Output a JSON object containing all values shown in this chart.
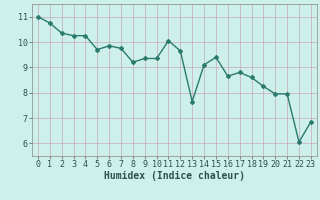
{
  "x": [
    0,
    1,
    2,
    3,
    4,
    5,
    6,
    7,
    8,
    9,
    10,
    11,
    12,
    13,
    14,
    15,
    16,
    17,
    18,
    19,
    20,
    21,
    22,
    23
  ],
  "y": [
    11.0,
    10.75,
    10.35,
    10.25,
    10.25,
    9.7,
    9.85,
    9.75,
    9.2,
    9.35,
    9.35,
    10.05,
    9.65,
    7.65,
    9.1,
    9.4,
    8.65,
    8.8,
    8.6,
    8.25,
    7.95,
    7.95,
    6.05,
    6.85
  ],
  "line_color": "#2a7a6e",
  "marker": "D",
  "marker_size": 2,
  "line_width": 1.0,
  "bg_color": "#cef0ea",
  "grid_color": "#c8a8b8",
  "xlabel": "Humidex (Indice chaleur)",
  "xlabel_fontsize": 7,
  "ylabel_fontsize": 7,
  "tick_fontsize": 6,
  "ylim": [
    5.5,
    11.5
  ],
  "xlim": [
    -0.5,
    23.5
  ],
  "yticks": [
    6,
    7,
    8,
    9,
    10,
    11
  ],
  "xticks": [
    0,
    1,
    2,
    3,
    4,
    5,
    6,
    7,
    8,
    9,
    10,
    11,
    12,
    13,
    14,
    15,
    16,
    17,
    18,
    19,
    20,
    21,
    22,
    23
  ]
}
